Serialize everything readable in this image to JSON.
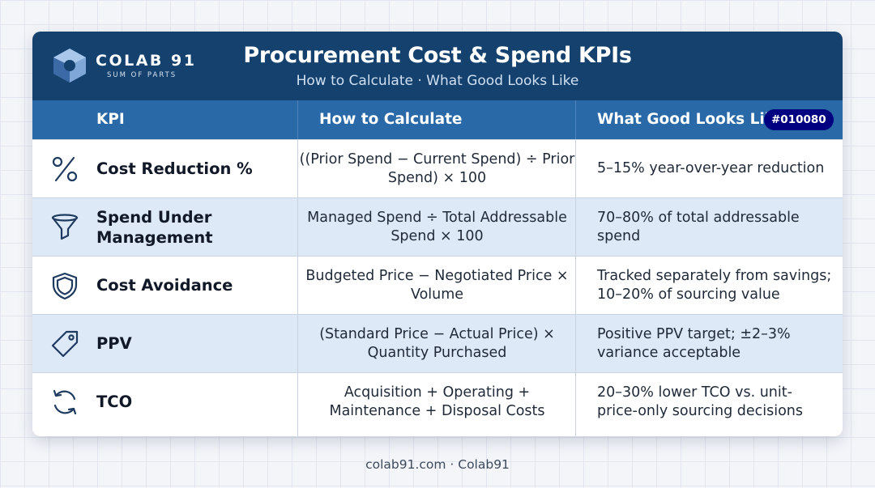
{
  "brand": {
    "name": "COLAB 91",
    "tagline": "SUM OF PARTS"
  },
  "header": {
    "title": "Procurement Cost & Spend KPIs",
    "subtitle": "How to Calculate · What Good Looks Like"
  },
  "columns": {
    "kpi": "KPI",
    "calc": "How to Calculate",
    "good": "What Good Looks Like",
    "badge": "#010080"
  },
  "rows": [
    {
      "icon": "percent-icon",
      "kpi": "Cost Reduction %",
      "calc": "((Prior Spend − Current Spend) ÷ Prior Spend) × 100",
      "good": "5–15% year-over-year reduction"
    },
    {
      "icon": "funnel-icon",
      "kpi": "Spend Under Management",
      "calc": "Managed Spend ÷ Total Addressable Spend × 100",
      "good": "70–80% of total addressable spend"
    },
    {
      "icon": "shield-icon",
      "kpi": "Cost Avoidance",
      "calc": "Budgeted Price − Negotiated Price × Volume",
      "good": "Tracked separately from savings; 10–20% of sourcing value"
    },
    {
      "icon": "price-tag-icon",
      "kpi": "PPV",
      "calc": "(Standard Price − Actual Price) × Quantity Purchased",
      "good": "Positive PPV target; ±2–3% variance acceptable"
    },
    {
      "icon": "refresh-cycle-icon",
      "kpi": "TCO",
      "calc": "Acquisition + Operating + Maintenance + Disposal Costs",
      "good": "20–30% lower TCO vs. unit-price-only sourcing decisions"
    }
  ],
  "footer": {
    "text": "colab91.com · Colab91"
  },
  "colors": {
    "header_bg": "#14416e",
    "column_header_bg": "#2a69a8",
    "alt_row_bg": "#dde9f6",
    "badge_bg": "#010080"
  }
}
